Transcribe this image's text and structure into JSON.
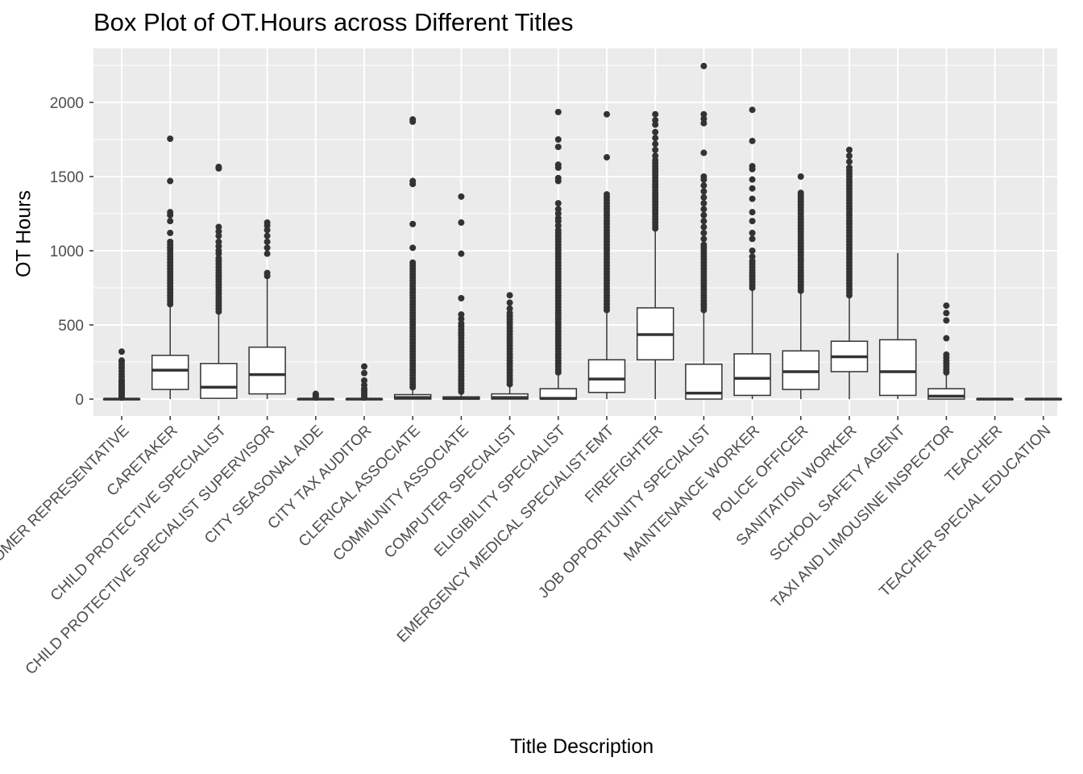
{
  "chart_data": {
    "type": "boxplot",
    "title": "Box Plot of OT.Hours across Different Titles",
    "xlabel": "Title Description",
    "ylabel": "OT Hours",
    "ylim": [
      -110,
      2330
    ],
    "yticks": [
      0,
      500,
      1000,
      1500,
      2000
    ],
    "grid": true,
    "categories": [
      "CUSTOMER REPRESENTATIVE",
      "CARETAKER",
      "CHILD PROTECTIVE SPECIALIST",
      "CHILD PROTECTIVE SPECIALIST SUPERVISOR",
      "CITY SEASONAL AIDE",
      "CITY TAX AUDITOR",
      "CLERICAL ASSOCIATE",
      "COMMUNITY ASSOCIATE",
      "COMPUTER SPECIALIST",
      "ELIGIBILITY SPECIALIST",
      "EMERGENCY MEDICAL SPECIALIST-EMT",
      "FIREFIGHTER",
      "JOB OPPORTUNITY SPECIALIST",
      "MAINTENANCE WORKER",
      "POLICE OFFICER",
      "SANITATION WORKER",
      "SCHOOL SAFETY AGENT",
      "TAXI AND LIMOUSINE INSPECTOR",
      "TEACHER",
      "TEACHER SPECIAL EDUCATION"
    ],
    "boxes": [
      {
        "min": 0,
        "q1": 0,
        "median": 0,
        "q3": 0,
        "max": 0,
        "outliers": [
          10,
          20,
          30,
          40,
          50,
          60,
          70,
          80,
          90,
          100,
          110,
          120,
          130,
          150,
          170,
          190,
          210,
          230,
          250,
          260,
          320
        ]
      },
      {
        "min": 0,
        "q1": 65,
        "median": 195,
        "q3": 295,
        "max": 620,
        "outliers": [
          640,
          660,
          680,
          700,
          720,
          740,
          760,
          780,
          800,
          820,
          840,
          860,
          880,
          900,
          920,
          940,
          960,
          980,
          1000,
          1020,
          1040,
          1060,
          1120,
          1200,
          1240,
          1260,
          1470,
          1755
        ]
      },
      {
        "min": 0,
        "q1": 5,
        "median": 80,
        "q3": 240,
        "max": 570,
        "outliers": [
          590,
          610,
          630,
          650,
          670,
          690,
          710,
          730,
          750,
          770,
          790,
          810,
          830,
          850,
          870,
          890,
          910,
          930,
          950,
          980,
          1000,
          1030,
          1060,
          1100,
          1130,
          1160,
          1555,
          1565
        ]
      },
      {
        "min": 0,
        "q1": 35,
        "median": 165,
        "q3": 350,
        "max": 820,
        "outliers": [
          830,
          850,
          980,
          1020,
          1060,
          1100,
          1140,
          1170,
          1190
        ]
      },
      {
        "min": 0,
        "q1": 0,
        "median": 0,
        "q3": 0,
        "max": 0,
        "outliers": [
          10,
          20,
          30,
          35
        ]
      },
      {
        "min": 0,
        "q1": 0,
        "median": 0,
        "q3": 0,
        "max": 0,
        "outliers": [
          10,
          25,
          40,
          55,
          70,
          95,
          125,
          175,
          220
        ]
      },
      {
        "min": 0,
        "q1": 0,
        "median": 10,
        "q3": 30,
        "max": 60,
        "outliers": [
          80,
          100,
          120,
          140,
          160,
          180,
          200,
          220,
          240,
          260,
          280,
          300,
          320,
          340,
          360,
          380,
          400,
          420,
          440,
          460,
          480,
          500,
          520,
          540,
          560,
          580,
          600,
          620,
          640,
          660,
          680,
          700,
          720,
          740,
          760,
          780,
          800,
          820,
          840,
          860,
          880,
          900,
          920,
          1020,
          1180,
          1450,
          1470,
          1870,
          1885
        ]
      },
      {
        "min": 0,
        "q1": 0,
        "median": 5,
        "q3": 15,
        "max": 35,
        "outliers": [
          50,
          70,
          90,
          110,
          130,
          150,
          170,
          190,
          210,
          230,
          250,
          270,
          290,
          310,
          330,
          350,
          370,
          390,
          410,
          430,
          450,
          470,
          490,
          510,
          540,
          570,
          680,
          980,
          1190,
          1365
        ]
      },
      {
        "min": 0,
        "q1": 0,
        "median": 10,
        "q3": 35,
        "max": 80,
        "outliers": [
          100,
          120,
          140,
          160,
          180,
          200,
          220,
          240,
          260,
          280,
          300,
          320,
          340,
          360,
          380,
          400,
          420,
          440,
          460,
          480,
          500,
          520,
          540,
          560,
          580,
          610,
          650,
          700
        ]
      },
      {
        "min": 0,
        "q1": 0,
        "median": 5,
        "q3": 70,
        "max": 160,
        "outliers": [
          180,
          200,
          220,
          240,
          260,
          280,
          300,
          320,
          340,
          360,
          380,
          400,
          420,
          440,
          460,
          480,
          500,
          520,
          540,
          560,
          580,
          600,
          620,
          640,
          660,
          680,
          700,
          720,
          740,
          760,
          780,
          800,
          820,
          840,
          860,
          880,
          900,
          920,
          940,
          960,
          980,
          1000,
          1020,
          1040,
          1060,
          1080,
          1100,
          1120,
          1140,
          1170,
          1200,
          1220,
          1250,
          1280,
          1320,
          1470,
          1490,
          1560,
          1580,
          1700,
          1750,
          1935
        ]
      },
      {
        "min": 0,
        "q1": 45,
        "median": 135,
        "q3": 265,
        "max": 580,
        "outliers": [
          600,
          620,
          640,
          660,
          680,
          700,
          720,
          740,
          760,
          780,
          800,
          820,
          840,
          860,
          880,
          900,
          920,
          940,
          960,
          980,
          1000,
          1020,
          1040,
          1060,
          1080,
          1100,
          1120,
          1140,
          1160,
          1180,
          1200,
          1220,
          1240,
          1260,
          1280,
          1300,
          1320,
          1340,
          1360,
          1380,
          1630,
          1920
        ]
      },
      {
        "min": 0,
        "q1": 265,
        "median": 435,
        "q3": 615,
        "max": 1130,
        "outliers": [
          1150,
          1170,
          1190,
          1210,
          1230,
          1250,
          1270,
          1290,
          1310,
          1330,
          1350,
          1370,
          1390,
          1410,
          1430,
          1450,
          1470,
          1490,
          1510,
          1530,
          1550,
          1570,
          1590,
          1610,
          1640,
          1680,
          1720,
          1760,
          1800,
          1850,
          1880,
          1920
        ]
      },
      {
        "min": 0,
        "q1": 0,
        "median": 40,
        "q3": 235,
        "max": 580,
        "outliers": [
          600,
          620,
          640,
          660,
          680,
          700,
          720,
          740,
          760,
          780,
          800,
          820,
          840,
          860,
          880,
          900,
          920,
          940,
          960,
          980,
          1000,
          1020,
          1040,
          1080,
          1120,
          1160,
          1200,
          1240,
          1280,
          1320,
          1360,
          1400,
          1440,
          1480,
          1500,
          1660,
          1860,
          1890,
          1920,
          2245
        ]
      },
      {
        "min": 0,
        "q1": 25,
        "median": 140,
        "q3": 305,
        "max": 730,
        "outliers": [
          750,
          770,
          790,
          810,
          830,
          850,
          870,
          890,
          910,
          930,
          960,
          1000,
          1080,
          1120,
          1200,
          1260,
          1350,
          1420,
          1480,
          1550,
          1570,
          1740,
          1950
        ]
      },
      {
        "min": 0,
        "q1": 65,
        "median": 185,
        "q3": 325,
        "max": 710,
        "outliers": [
          730,
          750,
          770,
          790,
          810,
          830,
          850,
          870,
          890,
          910,
          930,
          950,
          970,
          990,
          1010,
          1030,
          1050,
          1070,
          1090,
          1110,
          1130,
          1150,
          1170,
          1190,
          1210,
          1230,
          1250,
          1270,
          1290,
          1310,
          1330,
          1350,
          1370,
          1390,
          1500
        ]
      },
      {
        "min": 0,
        "q1": 185,
        "median": 285,
        "q3": 390,
        "max": 680,
        "outliers": [
          700,
          720,
          740,
          760,
          780,
          800,
          820,
          840,
          860,
          880,
          900,
          920,
          940,
          960,
          980,
          1000,
          1020,
          1040,
          1060,
          1080,
          1100,
          1120,
          1140,
          1160,
          1180,
          1200,
          1220,
          1240,
          1260,
          1280,
          1300,
          1320,
          1340,
          1360,
          1380,
          1400,
          1420,
          1440,
          1460,
          1480,
          1500,
          1520,
          1540,
          1560,
          1600,
          1640,
          1680
        ]
      },
      {
        "min": 0,
        "q1": 25,
        "median": 185,
        "q3": 400,
        "max": 985,
        "outliers": []
      },
      {
        "min": 0,
        "q1": 0,
        "median": 20,
        "q3": 70,
        "max": 160,
        "outliers": [
          180,
          200,
          220,
          240,
          260,
          280,
          300,
          410,
          530,
          580,
          630
        ]
      },
      {
        "min": 0,
        "q1": 0,
        "median": 0,
        "q3": 0,
        "max": 0,
        "outliers": []
      },
      {
        "min": 0,
        "q1": 0,
        "median": 0,
        "q3": 0,
        "max": 0,
        "outliers": []
      }
    ]
  }
}
